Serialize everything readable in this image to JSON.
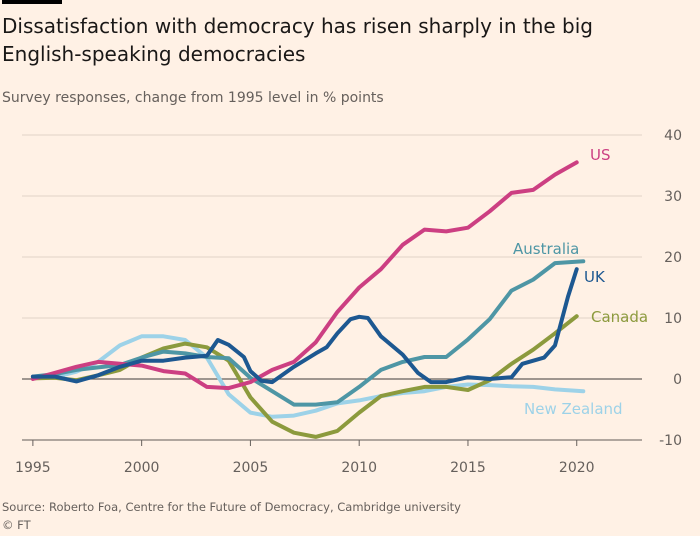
{
  "title": "Dissatisfaction with democracy has risen sharply in the big English-speaking democracies",
  "subtitle": "Survey responses, change from 1995 level in % points",
  "source": "Source: Roberto Foa, Centre for the Future of Democracy, Cambridge university",
  "copyright": "© FT",
  "chart_data": {
    "type": "line",
    "title": "Dissatisfaction with democracy has risen sharply in the big English-speaking democracies",
    "subtitle": "Survey responses, change from 1995 level in % points",
    "xlabel": "",
    "ylabel": "",
    "xlim": [
      1994.5,
      2023
    ],
    "ylim": [
      -10,
      40
    ],
    "x_ticks": [
      1995,
      2000,
      2005,
      2010,
      2015,
      2020
    ],
    "y_ticks": [
      -10,
      0,
      10,
      20,
      30,
      40
    ],
    "y_axis_side": "right",
    "grid": "horizontal",
    "legend": "direct labels at line ends",
    "series": [
      {
        "name": "US",
        "color": "#cc3f82",
        "x": [
          1995,
          1996,
          1997,
          1998,
          1999,
          2000,
          2001,
          2002,
          2003,
          2004,
          2005,
          2006,
          2007,
          2008,
          2009,
          2010,
          2011,
          2012,
          2013,
          2014,
          2015,
          2016,
          2017,
          2018,
          2019,
          2020
        ],
        "y": [
          0,
          1,
          2,
          2.8,
          2.5,
          2.2,
          1.3,
          0.9,
          -1.3,
          -1.5,
          -0.5,
          1.5,
          2.8,
          6,
          11,
          15,
          18,
          22,
          24.5,
          24.2,
          24.8,
          27.5,
          30.5,
          31,
          33.5,
          35.5
        ]
      },
      {
        "name": "Australia",
        "color": "#4e96a5",
        "x": [
          1995,
          1996,
          1997,
          1998,
          1999,
          2000,
          2001,
          2002,
          2003,
          2004,
          2005,
          2006,
          2007,
          2008,
          2009,
          2010,
          2011,
          2012,
          2013,
          2014,
          2015,
          2016,
          2017,
          2018,
          2019,
          2020.3
        ],
        "y": [
          0.4,
          0.8,
          1.5,
          1.9,
          2.3,
          3.5,
          4.5,
          4.2,
          3.6,
          3.4,
          0.2,
          -2,
          -4.2,
          -4.2,
          -3.8,
          -1.3,
          1.5,
          2.8,
          3.6,
          3.6,
          6.5,
          9.8,
          14.5,
          16.3,
          19,
          19.3
        ]
      },
      {
        "name": "UK",
        "color": "#1d5891",
        "x": [
          1995,
          1996,
          1997,
          1998,
          1999,
          2000,
          2001,
          2002,
          2003,
          2003.5,
          2004,
          2004.7,
          2005,
          2005.5,
          2006,
          2007,
          2008,
          2008.5,
          2009,
          2009.6,
          2010,
          2010.4,
          2011,
          2012,
          2012.7,
          2013.3,
          2014,
          2015,
          2016,
          2017,
          2017.5,
          2018.5,
          2019,
          2019.6,
          2020
        ],
        "y": [
          0.4,
          0.4,
          -0.4,
          0.6,
          2,
          3,
          3,
          3.5,
          3.8,
          6.4,
          5.6,
          3.6,
          1.3,
          -0.3,
          -0.5,
          2,
          4.2,
          5.2,
          7.5,
          9.8,
          10.2,
          10,
          7,
          4,
          1,
          -0.5,
          -0.5,
          0.3,
          0,
          0.3,
          2.5,
          3.5,
          5.5,
          13.5,
          18
        ]
      },
      {
        "name": "Canada",
        "color": "#8c9a3d",
        "x": [
          1995,
          1996,
          1997,
          1998,
          1999,
          2000,
          2001,
          2002,
          2003,
          2004,
          2005,
          2006,
          2007,
          2008,
          2009,
          2010,
          2011,
          2012,
          2013,
          2014,
          2015,
          2016,
          2017,
          2018,
          2019,
          2020
        ],
        "y": [
          0.1,
          0.2,
          -0.2,
          0.6,
          1.5,
          3.5,
          5,
          5.8,
          5.2,
          3,
          -3,
          -7,
          -8.8,
          -9.5,
          -8.5,
          -5.5,
          -2.8,
          -2,
          -1.3,
          -1.3,
          -1.8,
          -0.2,
          2.5,
          4.8,
          7.5,
          10.3
        ]
      },
      {
        "name": "New Zealand",
        "color": "#9dd2e8",
        "x": [
          1995,
          1996,
          1997,
          1998,
          1999,
          2000,
          2001,
          2002,
          2003,
          2004,
          2005,
          2006,
          2007,
          2008,
          2009,
          2010,
          2011,
          2012,
          2013,
          2014,
          2015,
          2016,
          2017,
          2018,
          2019,
          2020.3
        ],
        "y": [
          0.2,
          0.3,
          1.2,
          2.8,
          5.5,
          7,
          7,
          6.4,
          3.5,
          -2.5,
          -5.5,
          -6.2,
          -6,
          -5.2,
          -4,
          -3.5,
          -2.8,
          -2.3,
          -2,
          -1.3,
          -0.9,
          -1,
          -1.2,
          -1.3,
          -1.7,
          -2
        ]
      }
    ]
  }
}
